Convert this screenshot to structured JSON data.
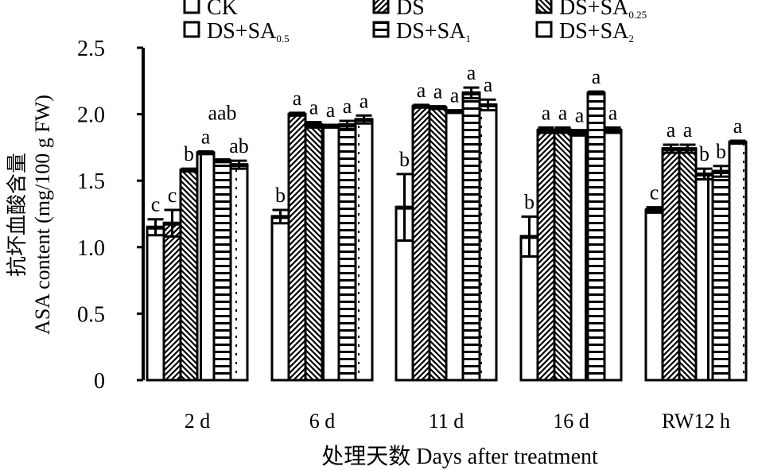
{
  "chart_data": {
    "type": "bar",
    "ylabel_cn": "抗坏血酸含量",
    "ylabel": "ASA content (mg/100 g FW)",
    "xlabel": "处理天数 Days after treatment",
    "ylim": [
      0,
      2.5
    ],
    "yticks": [
      "0",
      "0.5",
      "1.0",
      "1.5",
      "2.0",
      "2.5"
    ],
    "ytick_values": [
      0,
      0.5,
      1.0,
      1.5,
      2.0,
      2.5
    ],
    "categories": [
      "2 d",
      "6 d",
      "11 d",
      "16 d",
      "RW12 h"
    ],
    "legend_position": "top",
    "series": [
      {
        "name": "CK",
        "name_base": "CK",
        "name_sub": "",
        "pattern": "blank",
        "values": [
          1.15,
          1.23,
          1.3,
          1.08,
          1.28
        ],
        "errors": [
          0.06,
          0.05,
          0.25,
          0.15,
          0.02
        ],
        "letters": [
          "c",
          "b",
          "b",
          "b",
          "c"
        ]
      },
      {
        "name": "DS",
        "name_base": "DS",
        "name_sub": "",
        "pattern": "diag-right",
        "values": [
          1.18,
          2.0,
          2.06,
          1.88,
          1.74
        ],
        "errors": [
          0.1,
          0.01,
          0.01,
          0.02,
          0.03
        ],
        "letters": [
          "c",
          "a",
          "a",
          "a",
          "a"
        ]
      },
      {
        "name": "DS+SA0.25",
        "name_base": "DS+SA",
        "name_sub": "0.25",
        "pattern": "diag-left",
        "values": [
          1.58,
          1.92,
          2.05,
          1.88,
          1.74
        ],
        "errors": [
          0.01,
          0.02,
          0.01,
          0.02,
          0.03
        ],
        "letters": [
          "b",
          "a",
          "a",
          "a",
          "a"
        ]
      },
      {
        "name": "DS+SA0.5",
        "name_base": "DS+SA",
        "name_sub": "0.5",
        "pattern": "vertical",
        "values": [
          1.71,
          1.91,
          2.02,
          1.86,
          1.55
        ],
        "errors": [
          0.01,
          0.01,
          0.01,
          0.02,
          0.04
        ],
        "letters": [
          "a",
          "a",
          "a",
          "a",
          "b"
        ]
      },
      {
        "name": "DS+SA1",
        "name_base": "DS+SA",
        "name_sub": "1",
        "pattern": "horizontal",
        "values": [
          1.65,
          1.92,
          2.16,
          2.16,
          1.57
        ],
        "errors": [
          0.01,
          0.03,
          0.04,
          0.01,
          0.04
        ],
        "letters": [
          "aab",
          "a",
          "a",
          "a",
          "b"
        ]
      },
      {
        "name": "DS+SA2",
        "name_base": "DS+SA",
        "name_sub": "2",
        "pattern": "dots",
        "values": [
          1.62,
          1.96,
          2.07,
          1.88,
          1.79
        ],
        "errors": [
          0.03,
          0.03,
          0.04,
          0.02,
          0.01
        ],
        "letters": [
          "ab",
          "a",
          "a",
          "a",
          "a"
        ]
      }
    ]
  }
}
